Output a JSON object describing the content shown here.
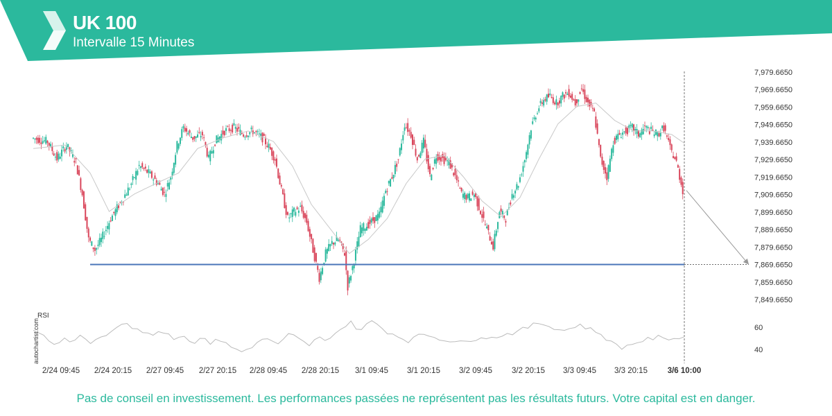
{
  "header": {
    "title": "UK 100",
    "subtitle": "Intervalle 15 Minutes",
    "brand_color": "#2bb99d",
    "logo_icon": "autochartist-logo-icon"
  },
  "footer": {
    "disclaimer": "Pas de conseil en investissement. Les performances passées ne représentent pas les résultats futurs. Votre capital est en danger."
  },
  "watermark": "autochartist.com",
  "chart_data": {
    "type": "candlestick",
    "symbol": "UK 100",
    "interval": "15 Minutes",
    "y_ticks": [
      "7,979.6650",
      "7,969.6650",
      "7,959.6650",
      "7,949.6650",
      "7,939.6650",
      "7,929.6650",
      "7,919.6650",
      "7,909.6650",
      "7,899.6650",
      "7,889.6650",
      "7,879.6650",
      "7,869.6650",
      "7,859.6650",
      "7,849.6650"
    ],
    "ylim": [
      7845,
      7985
    ],
    "x_ticks": [
      "2/24 09:45",
      "2/24 20:15",
      "2/27 09:45",
      "2/27 20:15",
      "2/28 09:45",
      "2/28 20:15",
      "3/1 09:45",
      "3/1 20:15",
      "3/2 09:45",
      "3/2 20:15",
      "3/3 09:45",
      "3/3 20:15"
    ],
    "current_time_label": "3/6 10:00",
    "support_level": 7869.665,
    "support_color": "#4a76b8",
    "projection": {
      "from": 7912,
      "to": 7869.665
    },
    "up_color": "#2bb99d",
    "down_color": "#d9465b",
    "price_path": [
      [
        0,
        7942
      ],
      [
        5,
        7940
      ],
      [
        8,
        7930
      ],
      [
        11,
        7938
      ],
      [
        14,
        7928
      ],
      [
        16,
        7910
      ],
      [
        18,
        7884
      ],
      [
        20,
        7878
      ],
      [
        22,
        7884
      ],
      [
        25,
        7896
      ],
      [
        28,
        7905
      ],
      [
        31,
        7914
      ],
      [
        34,
        7926
      ],
      [
        37,
        7922
      ],
      [
        40,
        7916
      ],
      [
        42,
        7910
      ],
      [
        44,
        7920
      ],
      [
        46,
        7938
      ],
      [
        48,
        7948
      ],
      [
        51,
        7942
      ],
      [
        54,
        7944
      ],
      [
        56,
        7930
      ],
      [
        58,
        7940
      ],
      [
        61,
        7946
      ],
      [
        64,
        7948
      ],
      [
        67,
        7944
      ],
      [
        70,
        7946
      ],
      [
        73,
        7942
      ],
      [
        75,
        7937
      ],
      [
        77,
        7930
      ],
      [
        79,
        7912
      ],
      [
        81,
        7896
      ],
      [
        83,
        7900
      ],
      [
        85,
        7902
      ],
      [
        87,
        7894
      ],
      [
        89,
        7878
      ],
      [
        91,
        7862
      ],
      [
        93,
        7876
      ],
      [
        95,
        7882
      ],
      [
        97,
        7884
      ],
      [
        99,
        7876
      ],
      [
        100,
        7857
      ],
      [
        102,
        7872
      ],
      [
        104,
        7890
      ],
      [
        106,
        7892
      ],
      [
        108,
        7895
      ],
      [
        110,
        7898
      ],
      [
        112,
        7912
      ],
      [
        114,
        7920
      ],
      [
        116,
        7930
      ],
      [
        118,
        7950
      ],
      [
        120,
        7944
      ],
      [
        122,
        7930
      ],
      [
        124,
        7940
      ],
      [
        126,
        7920
      ],
      [
        128,
        7932
      ],
      [
        130,
        7930
      ],
      [
        132,
        7928
      ],
      [
        134,
        7920
      ],
      [
        136,
        7910
      ],
      [
        138,
        7908
      ],
      [
        140,
        7910
      ],
      [
        142,
        7900
      ],
      [
        144,
        7890
      ],
      [
        146,
        7880
      ],
      [
        148,
        7900
      ],
      [
        150,
        7896
      ],
      [
        152,
        7910
      ],
      [
        154,
        7916
      ],
      [
        156,
        7930
      ],
      [
        158,
        7948
      ],
      [
        160,
        7958
      ],
      [
        162,
        7964
      ],
      [
        164,
        7966
      ],
      [
        166,
        7962
      ],
      [
        168,
        7966
      ],
      [
        170,
        7968
      ],
      [
        172,
        7962
      ],
      [
        174,
        7970
      ],
      [
        176,
        7962
      ],
      [
        178,
        7956
      ],
      [
        180,
        7930
      ],
      [
        182,
        7920
      ],
      [
        184,
        7940
      ],
      [
        186,
        7944
      ],
      [
        188,
        7946
      ],
      [
        190,
        7948
      ],
      [
        192,
        7944
      ],
      [
        194,
        7948
      ],
      [
        196,
        7946
      ],
      [
        198,
        7944
      ],
      [
        200,
        7948
      ],
      [
        202,
        7936
      ],
      [
        204,
        7928
      ],
      [
        206,
        7912
      ]
    ],
    "moving_average": [
      [
        0,
        7936
      ],
      [
        10,
        7938
      ],
      [
        18,
        7922
      ],
      [
        24,
        7900
      ],
      [
        32,
        7910
      ],
      [
        40,
        7917
      ],
      [
        46,
        7922
      ],
      [
        52,
        7936
      ],
      [
        60,
        7942
      ],
      [
        68,
        7946
      ],
      [
        76,
        7940
      ],
      [
        82,
        7926
      ],
      [
        88,
        7904
      ],
      [
        94,
        7890
      ],
      [
        100,
        7876
      ],
      [
        106,
        7884
      ],
      [
        112,
        7896
      ],
      [
        118,
        7916
      ],
      [
        124,
        7930
      ],
      [
        130,
        7932
      ],
      [
        136,
        7920
      ],
      [
        142,
        7906
      ],
      [
        148,
        7897
      ],
      [
        154,
        7908
      ],
      [
        160,
        7930
      ],
      [
        166,
        7950
      ],
      [
        172,
        7960
      ],
      [
        178,
        7962
      ],
      [
        184,
        7952
      ],
      [
        190,
        7946
      ],
      [
        196,
        7946
      ],
      [
        202,
        7944
      ],
      [
        206,
        7939
      ]
    ],
    "rsi": {
      "label": "RSI",
      "ticks": [
        "60",
        "40"
      ],
      "ylim": [
        30,
        75
      ],
      "values": [
        58,
        55,
        52,
        48,
        45,
        47,
        49,
        46,
        50,
        51,
        48,
        45,
        50,
        52,
        54,
        58,
        60,
        64,
        62,
        58,
        60,
        57,
        55,
        53,
        58,
        56,
        54,
        50,
        52,
        51,
        49,
        47,
        50,
        48,
        46,
        50,
        48,
        45,
        42,
        40,
        38,
        40,
        43,
        46,
        48,
        50,
        47,
        44,
        48,
        53,
        52,
        49,
        46,
        44,
        48,
        50,
        47,
        52,
        55,
        58,
        62,
        64,
        60,
        58,
        62,
        65,
        63,
        59,
        56,
        54,
        52,
        50,
        48,
        50,
        52,
        54,
        53,
        51,
        50,
        49,
        48,
        47,
        46,
        47,
        49,
        50,
        52,
        51,
        50,
        52,
        53,
        54,
        55,
        56,
        58,
        60,
        62,
        64,
        63,
        61,
        60,
        58,
        57,
        59,
        61,
        62,
        60,
        58,
        56,
        54,
        50,
        46,
        44,
        42,
        43,
        45,
        47,
        48,
        49,
        50,
        51,
        49,
        50,
        51,
        50,
        51
      ]
    }
  }
}
